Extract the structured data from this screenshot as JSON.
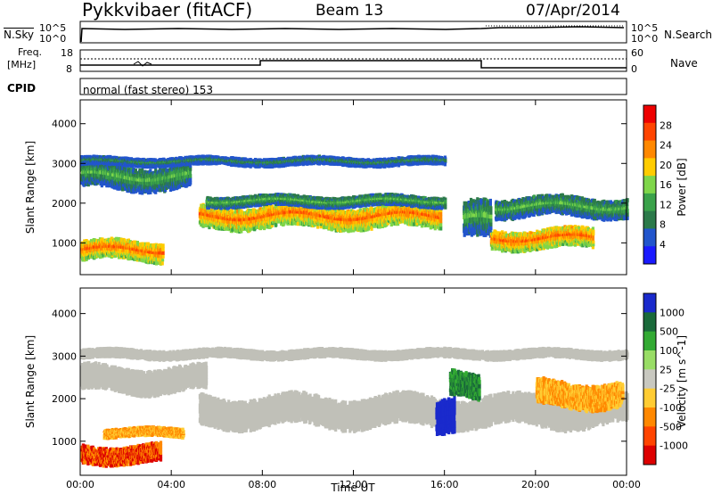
{
  "header": {
    "station": "Pykkvibaer (fitACF)",
    "beam": "Beam 13",
    "date": "07/Apr/2014"
  },
  "status_panels": {
    "nsky_label": "N.Sky",
    "nsky_ticks": [
      "10^5",
      "10^0"
    ],
    "nsearch_label": "N.Search",
    "nsearch_ticks": [
      "10^5",
      "10^0"
    ],
    "freq_label_1": "Freq.",
    "freq_label_2": "[MHz]",
    "freq_ticks": [
      "18",
      "8"
    ],
    "nave_label": "Nave",
    "nave_ticks": [
      "60",
      "0"
    ],
    "cpid_label": "CPID",
    "cpid_text": "normal (fast stereo) 153"
  },
  "colors": {
    "power_scale": [
      "#1a1aff",
      "#2255cc",
      "#2c7a4a",
      "#3aa24a",
      "#7fd64a",
      "#ffcc00",
      "#ff8800",
      "#ff4400",
      "#ee0000"
    ],
    "velocity_scale": [
      "#1a2acc",
      "#1a6a3a",
      "#33aa33",
      "#99dd66",
      "#c8c8c0",
      "#ffcc33",
      "#ff8800",
      "#ff4400",
      "#dd0000"
    ],
    "ground_scatter": "#c0c0b8"
  },
  "chart_data": [
    {
      "type": "heatmap",
      "title": "",
      "xlabel": "Time UT",
      "ylabel": "Slant Range [km]",
      "x_ticks": [
        "00:00",
        "04:00",
        "08:00",
        "12:00",
        "16:00",
        "20:00",
        "00:00"
      ],
      "xlim_hours": [
        0,
        24
      ],
      "y_ticks": [
        1000,
        2000,
        3000,
        4000
      ],
      "ylim": [
        200,
        4600
      ],
      "colorbar_label": "Power [dB]",
      "colorbar_ticks": [
        4,
        8,
        12,
        16,
        20,
        24,
        28
      ],
      "bands": [
        {
          "x0": 0.0,
          "x1": 3.6,
          "range_center": 800,
          "range_halfwidth": 250,
          "level": 24
        },
        {
          "x0": 0.0,
          "x1": 4.8,
          "range_center": 2650,
          "range_halfwidth": 300,
          "level": 12
        },
        {
          "x0": 5.2,
          "x1": 15.8,
          "range_center": 1650,
          "range_halfwidth": 280,
          "level": 24
        },
        {
          "x0": 5.5,
          "x1": 16.0,
          "range_center": 2050,
          "range_halfwidth": 150,
          "level": 12
        },
        {
          "x0": 16.8,
          "x1": 18.0,
          "range_center": 1500,
          "range_halfwidth": 450,
          "level": 12
        },
        {
          "x0": 18.0,
          "x1": 22.5,
          "range_center": 1100,
          "range_halfwidth": 250,
          "level": 24
        },
        {
          "x0": 18.2,
          "x1": 24.0,
          "range_center": 1900,
          "range_halfwidth": 250,
          "level": 12
        },
        {
          "x0": 0.0,
          "x1": 16.0,
          "range_center": 3050,
          "range_halfwidth": 120,
          "level": 8
        }
      ]
    },
    {
      "type": "heatmap",
      "title": "",
      "xlabel": "Time UT",
      "ylabel": "Slant Range [km]",
      "x_ticks": [
        "00:00",
        "04:00",
        "08:00",
        "12:00",
        "16:00",
        "20:00",
        "00:00"
      ],
      "xlim_hours": [
        0,
        24
      ],
      "y_ticks": [
        1000,
        2000,
        3000,
        4000
      ],
      "ylim": [
        200,
        4600
      ],
      "colorbar_label": "Velocity [m s^-1]",
      "colorbar_ticks": [
        1000,
        500,
        100,
        25,
        -25,
        -100,
        -500,
        -1000
      ],
      "bands": [
        {
          "x0": 0.0,
          "x1": 24.0,
          "range_center": 3050,
          "range_halfwidth": 120,
          "level": 0
        },
        {
          "x0": 0.0,
          "x1": 5.5,
          "range_center": 2450,
          "range_halfwidth": 300,
          "level": 0
        },
        {
          "x0": 5.2,
          "x1": 24.0,
          "range_center": 1700,
          "range_halfwidth": 350,
          "level": 0
        },
        {
          "x0": 0.0,
          "x1": 3.5,
          "range_center": 700,
          "range_halfwidth": 220,
          "level": -500
        },
        {
          "x0": 1.0,
          "x1": 4.5,
          "range_center": 1200,
          "range_halfwidth": 120,
          "level": -100
        },
        {
          "x0": 15.6,
          "x1": 16.4,
          "range_center": 1500,
          "range_halfwidth": 400,
          "level": 1000
        },
        {
          "x0": 16.2,
          "x1": 17.5,
          "range_center": 2300,
          "range_halfwidth": 300,
          "level": 100
        },
        {
          "x0": 20.0,
          "x1": 23.8,
          "range_center": 2100,
          "range_halfwidth": 300,
          "level": -100
        }
      ]
    }
  ]
}
